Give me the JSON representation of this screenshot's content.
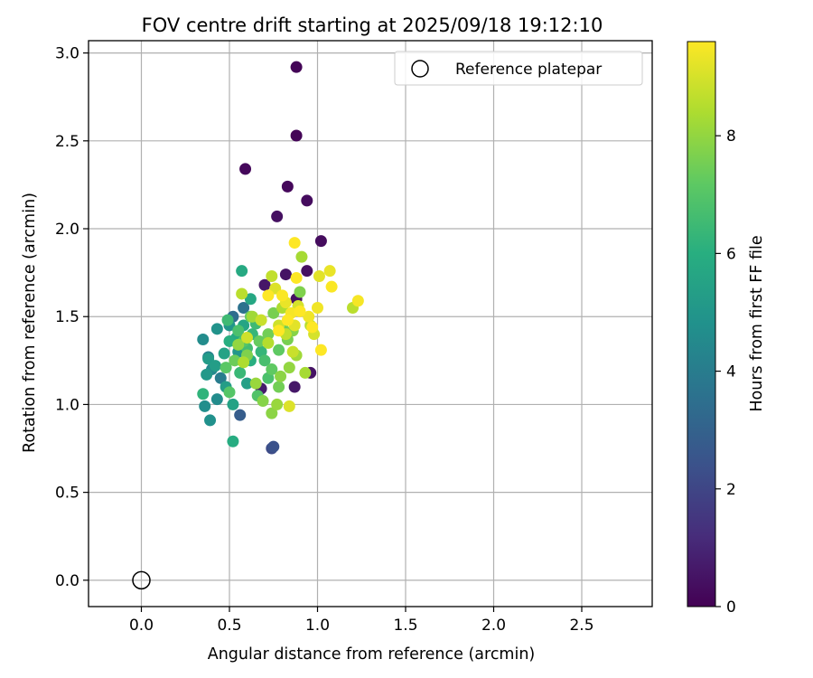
{
  "chart_data": {
    "type": "scatter",
    "title": "FOV centre drift starting at 2025/09/18 19:12:10",
    "xlabel": "Angular distance from reference (arcmin)",
    "ylabel": "Rotation from reference (arcmin)",
    "xlim": [
      -0.3,
      2.9
    ],
    "ylim": [
      -0.15,
      3.07
    ],
    "xticks": [
      "0.0",
      "0.5",
      "1.0",
      "1.5",
      "2.0",
      "2.5"
    ],
    "yticks": [
      "0.0",
      "0.5",
      "1.0",
      "1.5",
      "2.0",
      "2.5",
      "3.0"
    ],
    "grid": true,
    "legend": {
      "placement": "top-right",
      "entries": [
        "Reference platepar"
      ]
    },
    "reference_point": {
      "x": 0.0,
      "y": 0.0,
      "label": "Reference platepar"
    },
    "colorbar": {
      "label": "Hours from first FF file",
      "range": [
        0,
        9.6
      ],
      "ticks": [
        "0",
        "2",
        "4",
        "6",
        "8"
      ],
      "colormap": "viridis"
    },
    "series": [
      {
        "points": [
          [
            0.88,
            2.92,
            0.1
          ],
          [
            0.88,
            2.53,
            0.1
          ],
          [
            0.59,
            2.34,
            0.2
          ],
          [
            0.83,
            2.24,
            0.2
          ],
          [
            0.94,
            2.16,
            0.3
          ],
          [
            0.77,
            2.07,
            0.4
          ],
          [
            1.02,
            1.93,
            0.3
          ],
          [
            0.94,
            1.76,
            0.4
          ],
          [
            0.82,
            1.74,
            0.5
          ],
          [
            0.88,
            1.6,
            0.4
          ],
          [
            0.7,
            1.68,
            0.6
          ],
          [
            0.96,
            1.18,
            0.5
          ],
          [
            0.87,
            1.1,
            0.6
          ],
          [
            0.68,
            1.09,
            0.7
          ],
          [
            0.74,
            0.75,
            2.2
          ],
          [
            0.75,
            0.76,
            2.4
          ],
          [
            0.56,
            0.94,
            2.8
          ],
          [
            0.52,
            1.5,
            3.4
          ],
          [
            0.58,
            1.55,
            3.6
          ],
          [
            0.45,
            1.15,
            4.0
          ],
          [
            0.38,
            1.27,
            4.2
          ],
          [
            0.4,
            1.2,
            4.5
          ],
          [
            0.35,
            1.37,
            4.6
          ],
          [
            0.43,
            1.03,
            4.6
          ],
          [
            0.36,
            0.99,
            4.7
          ],
          [
            0.39,
            0.91,
            4.8
          ],
          [
            0.43,
            1.43,
            4.9
          ],
          [
            0.5,
            1.45,
            5.0
          ],
          [
            0.55,
            1.3,
            5.0
          ],
          [
            0.37,
            1.17,
            5.1
          ],
          [
            0.38,
            1.26,
            5.2
          ],
          [
            0.42,
            1.22,
            5.3
          ],
          [
            0.48,
            1.1,
            5.3
          ],
          [
            0.6,
            1.12,
            5.4
          ],
          [
            0.47,
            1.29,
            5.5
          ],
          [
            0.52,
            1.0,
            5.5
          ],
          [
            0.58,
            1.45,
            5.6
          ],
          [
            0.62,
            1.6,
            5.7
          ],
          [
            0.57,
            1.76,
            5.8
          ],
          [
            0.54,
            1.38,
            5.8
          ],
          [
            0.52,
            0.79,
            5.9
          ],
          [
            0.5,
            1.36,
            6.0
          ],
          [
            0.62,
            1.25,
            6.0
          ],
          [
            0.35,
            1.06,
            6.2
          ],
          [
            0.63,
            1.4,
            6.3
          ],
          [
            0.68,
            1.3,
            6.3
          ],
          [
            0.56,
            1.18,
            6.4
          ],
          [
            0.65,
            1.46,
            6.5
          ],
          [
            0.49,
            1.48,
            6.5
          ],
          [
            0.6,
            1.32,
            6.6
          ],
          [
            0.7,
            1.25,
            6.7
          ],
          [
            0.55,
            1.42,
            6.8
          ],
          [
            0.72,
            1.15,
            6.8
          ],
          [
            0.66,
            1.05,
            6.9
          ],
          [
            0.5,
            1.07,
            7.0
          ],
          [
            0.58,
            1.36,
            7.0
          ],
          [
            0.48,
            1.21,
            7.1
          ],
          [
            0.74,
            1.2,
            7.2
          ],
          [
            0.78,
            1.31,
            7.2
          ],
          [
            0.62,
            1.5,
            7.3
          ],
          [
            0.67,
            1.36,
            7.3
          ],
          [
            0.8,
            1.44,
            7.4
          ],
          [
            0.53,
            1.25,
            7.4
          ],
          [
            0.72,
            1.4,
            7.5
          ],
          [
            0.78,
            1.1,
            7.5
          ],
          [
            0.83,
            1.37,
            7.6
          ],
          [
            0.75,
            1.52,
            7.6
          ],
          [
            0.6,
            1.28,
            7.7
          ],
          [
            0.9,
            1.64,
            7.7
          ],
          [
            0.86,
            1.42,
            7.8
          ],
          [
            0.69,
            1.02,
            7.8
          ],
          [
            0.74,
            0.95,
            7.9
          ],
          [
            0.79,
            1.16,
            7.9
          ],
          [
            0.55,
            1.34,
            8.0
          ],
          [
            0.84,
            1.21,
            8.0
          ],
          [
            0.77,
            1.0,
            8.1
          ],
          [
            0.65,
            1.12,
            8.1
          ],
          [
            0.63,
            1.5,
            8.2
          ],
          [
            0.88,
            1.28,
            8.2
          ],
          [
            0.91,
            1.84,
            8.3
          ],
          [
            0.93,
            1.18,
            8.3
          ],
          [
            0.58,
            1.24,
            8.4
          ],
          [
            0.8,
            1.55,
            8.4
          ],
          [
            0.96,
            1.45,
            8.5
          ],
          [
            0.72,
            1.35,
            8.5
          ],
          [
            1.2,
            1.55,
            8.6
          ],
          [
            0.57,
            1.63,
            8.6
          ],
          [
            0.74,
            1.73,
            8.7
          ],
          [
            0.82,
            1.4,
            8.7
          ],
          [
            0.86,
            1.3,
            8.8
          ],
          [
            0.68,
            1.48,
            8.8
          ],
          [
            0.78,
            1.45,
            8.9
          ],
          [
            0.6,
            1.38,
            8.9
          ],
          [
            0.89,
            1.56,
            9.0
          ],
          [
            0.98,
            1.4,
            9.0
          ],
          [
            0.84,
            0.99,
            9.1
          ],
          [
            0.76,
            1.66,
            9.1
          ],
          [
            1.01,
            1.73,
            9.2
          ],
          [
            0.87,
            1.45,
            9.2
          ],
          [
            0.82,
            1.58,
            9.3
          ],
          [
            1.07,
            1.76,
            9.3
          ],
          [
            0.95,
            1.5,
            9.4
          ],
          [
            1.0,
            1.55,
            9.4
          ],
          [
            1.23,
            1.59,
            9.5
          ],
          [
            0.85,
            1.52,
            9.5
          ],
          [
            0.8,
            1.62,
            9.55
          ],
          [
            1.08,
            1.67,
            9.55
          ],
          [
            0.87,
            1.92,
            9.6
          ],
          [
            0.78,
            1.42,
            9.6
          ],
          [
            0.88,
            1.72,
            9.6
          ],
          [
            0.9,
            1.53,
            9.6
          ],
          [
            0.83,
            1.48,
            9.6
          ],
          [
            0.72,
            1.62,
            9.6
          ],
          [
            0.97,
            1.44,
            9.6
          ],
          [
            1.02,
            1.31,
            9.6
          ]
        ]
      }
    ]
  }
}
